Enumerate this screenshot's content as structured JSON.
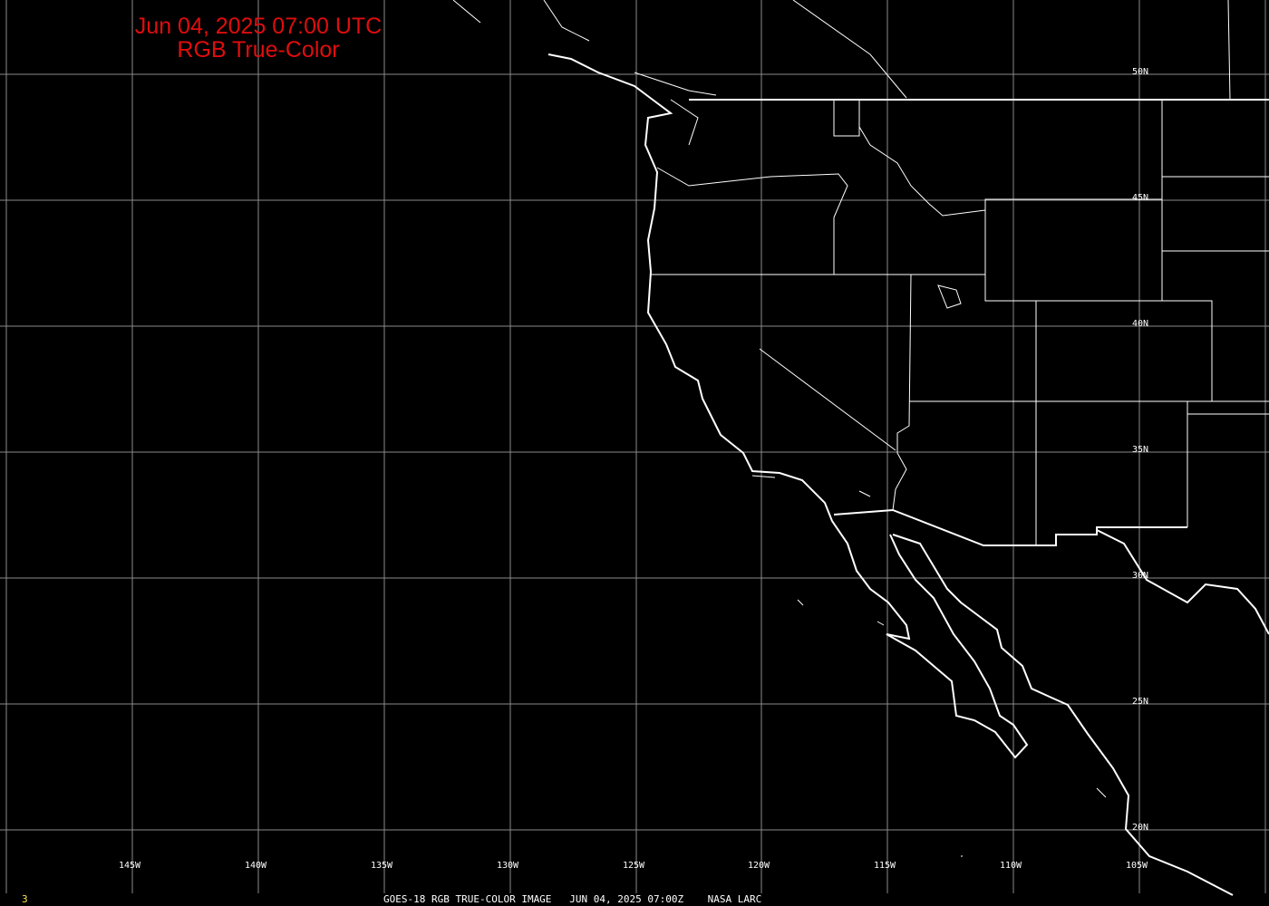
{
  "title": {
    "line1": "Jun 04, 2025 07:00 UTC",
    "line2": "RGB True-Color"
  },
  "colors": {
    "title": "#e00d0d",
    "grid": "#8a8a8a",
    "coast": "#ffffff",
    "frame_number": "#ffe14d",
    "background": "#000000"
  },
  "lat_labels": [
    "50N",
    "45N",
    "40N",
    "35N",
    "30N",
    "25N",
    "20N"
  ],
  "lon_labels": [
    "145W",
    "140W",
    "135W",
    "130W",
    "125W",
    "120W",
    "115W",
    "110W",
    "105W"
  ],
  "footer": {
    "frame_number": "3",
    "caption": "GOES-18 RGB TRUE-COLOR IMAGE   JUN 04, 2025 07:00Z    NASA LARC"
  }
}
